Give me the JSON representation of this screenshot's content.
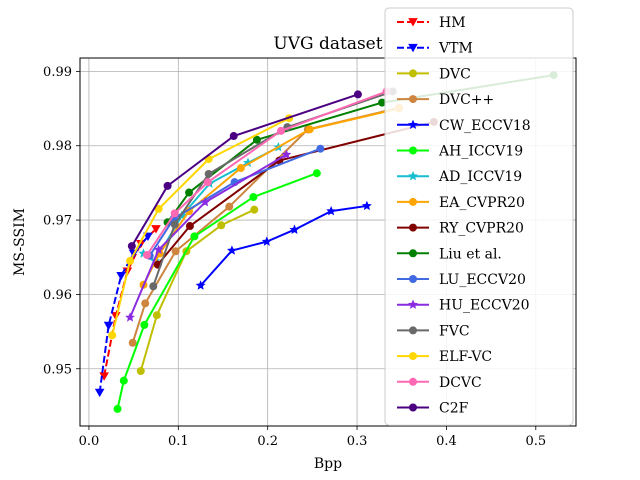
{
  "chart_data": {
    "type": "line",
    "title": "UVG dataset",
    "xlabel": "Bpp",
    "ylabel": "MS-SSIM",
    "xlim": [
      -0.01,
      0.545
    ],
    "ylim": [
      0.9423,
      0.9918
    ],
    "xticks": [
      0.0,
      0.1,
      0.2,
      0.3,
      0.4,
      0.5
    ],
    "yticks": [
      0.95,
      0.96,
      0.97,
      0.98,
      0.99
    ],
    "xtick_labels": [
      "0.0",
      "0.1",
      "0.2",
      "0.3",
      "0.4",
      "0.5"
    ],
    "ytick_labels": [
      "0.95",
      "0.96",
      "0.97",
      "0.98",
      "0.99"
    ],
    "grid": true,
    "legend_position": "right",
    "series": [
      {
        "name": "HM",
        "color": "#ff0000",
        "dash": "dashed",
        "marker": "triangle-down",
        "x": [
          0.017,
          0.03,
          0.043,
          0.058,
          0.075
        ],
        "y": [
          0.949,
          0.9571,
          0.9631,
          0.9668,
          0.9688
        ]
      },
      {
        "name": "VTM",
        "color": "#0000ff",
        "dash": "dashed",
        "marker": "triangle-down",
        "x": [
          0.012,
          0.022,
          0.036,
          0.05,
          0.066
        ],
        "y": [
          0.9468,
          0.9558,
          0.9625,
          0.9655,
          0.9678
        ]
      },
      {
        "name": "DVC",
        "color": "#bfbf00",
        "dash": "solid",
        "marker": "circle",
        "x": [
          0.058,
          0.076,
          0.109,
          0.148,
          0.185
        ],
        "y": [
          0.9497,
          0.9572,
          0.9658,
          0.9693,
          0.9714
        ]
      },
      {
        "name": "DVC++",
        "color": "#cd853f",
        "dash": "solid",
        "marker": "circle",
        "x": [
          0.049,
          0.063,
          0.097,
          0.157,
          0.245,
          0.347
        ],
        "y": [
          0.9535,
          0.9588,
          0.9658,
          0.9718,
          0.9822,
          0.9851
        ]
      },
      {
        "name": "CW_ECCV18",
        "color": "#0000ff",
        "dash": "solid",
        "marker": "star",
        "x": [
          0.125,
          0.16,
          0.199,
          0.23,
          0.271,
          0.311
        ],
        "y": [
          0.9612,
          0.9659,
          0.9671,
          0.9687,
          0.9712,
          0.9719
        ]
      },
      {
        "name": "AH_ICCV19",
        "color": "#00ff00",
        "dash": "solid",
        "marker": "circle",
        "x": [
          0.032,
          0.039,
          0.062,
          0.118,
          0.184,
          0.255
        ],
        "y": [
          0.9446,
          0.9484,
          0.9559,
          0.9678,
          0.9731,
          0.9763
        ]
      },
      {
        "name": "AD_ICCV19",
        "color": "#17becf",
        "dash": "solid",
        "marker": "star",
        "x": [
          0.061,
          0.074,
          0.104,
          0.135,
          0.178,
          0.212
        ],
        "y": [
          0.9655,
          0.9645,
          0.9706,
          0.9749,
          0.9777,
          0.9798
        ]
      },
      {
        "name": "EA_CVPR20",
        "color": "#ffa500",
        "dash": "solid",
        "marker": "circle",
        "x": [
          0.061,
          0.079,
          0.112,
          0.17,
          0.247,
          0.347
        ],
        "y": [
          0.9613,
          0.9655,
          0.9712,
          0.977,
          0.9822,
          0.985
        ]
      },
      {
        "name": "RY_CVPR20",
        "color": "#800000",
        "dash": "solid",
        "marker": "circle",
        "x": [
          0.077,
          0.113,
          0.213,
          0.386
        ],
        "y": [
          0.964,
          0.9692,
          0.978,
          0.9832
        ]
      },
      {
        "name": "Liu et al.",
        "color": "#008000",
        "dash": "solid",
        "marker": "circle",
        "x": [
          0.088,
          0.112,
          0.188,
          0.328,
          0.52
        ],
        "y": [
          0.9697,
          0.9737,
          0.9808,
          0.9858,
          0.9895
        ]
      },
      {
        "name": "LU_ECCV20",
        "color": "#4169e1",
        "dash": "solid",
        "marker": "circle",
        "x": [
          0.068,
          0.095,
          0.163,
          0.259
        ],
        "y": [
          0.9652,
          0.9702,
          0.9751,
          0.9796
        ]
      },
      {
        "name": "HU_ECCV20",
        "color": "#8a2be2",
        "dash": "solid",
        "marker": "star",
        "x": [
          0.046,
          0.078,
          0.13,
          0.221
        ],
        "y": [
          0.9569,
          0.966,
          0.9724,
          0.9788
        ]
      },
      {
        "name": "FVC",
        "color": "#696969",
        "dash": "solid",
        "marker": "circle",
        "x": [
          0.072,
          0.096,
          0.134,
          0.222,
          0.34
        ],
        "y": [
          0.9611,
          0.9694,
          0.9762,
          0.9825,
          0.9873
        ]
      },
      {
        "name": "ELF-VC",
        "color": "#ffd700",
        "dash": "solid",
        "marker": "circle",
        "x": [
          0.026,
          0.046,
          0.078,
          0.134,
          0.224
        ],
        "y": [
          0.9545,
          0.9645,
          0.9715,
          0.9782,
          0.9837
        ]
      },
      {
        "name": "DCVC",
        "color": "#ff69b4",
        "dash": "solid",
        "marker": "circle",
        "x": [
          0.065,
          0.096,
          0.133,
          0.215,
          0.333
        ],
        "y": [
          0.9653,
          0.9709,
          0.9751,
          0.982,
          0.9873
        ]
      },
      {
        "name": "C2F",
        "color": "#4b0082",
        "dash": "solid",
        "marker": "circle",
        "x": [
          0.048,
          0.088,
          0.162,
          0.301
        ],
        "y": [
          0.9665,
          0.9746,
          0.9813,
          0.9869
        ]
      }
    ]
  }
}
